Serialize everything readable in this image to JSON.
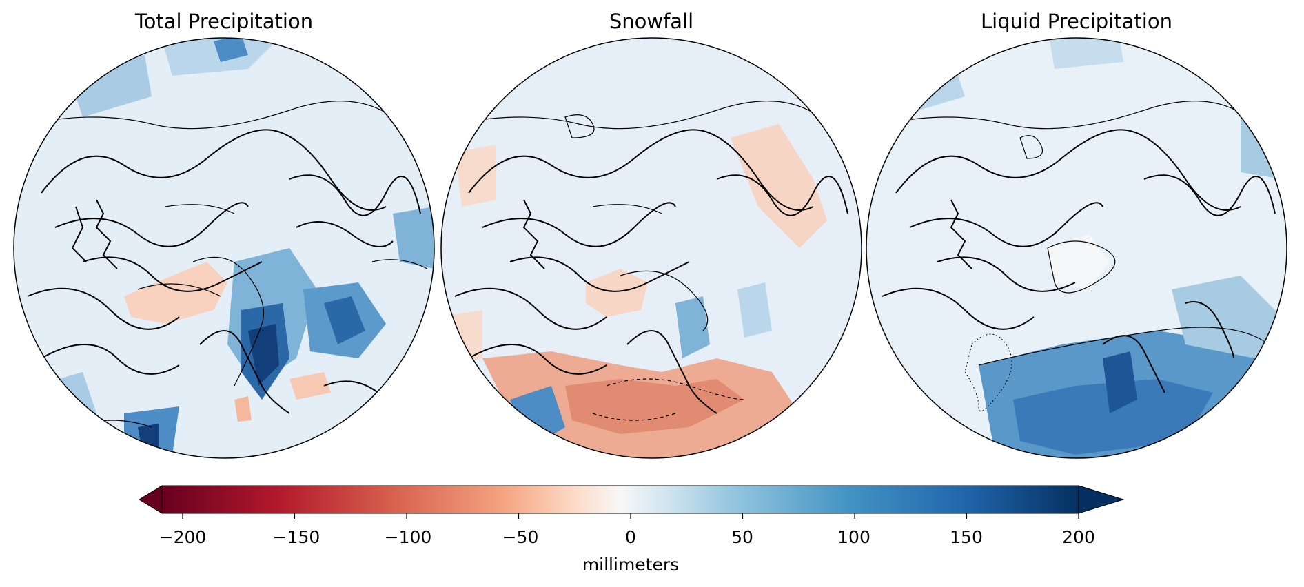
{
  "panels": [
    {
      "title": "Total Precipitation",
      "mode": "total"
    },
    {
      "title": "Snowfall",
      "mode": "snow"
    },
    {
      "title": "Liquid Precipitation",
      "mode": "liquid"
    }
  ],
  "colorbar": {
    "label": "millimeters",
    "colormap": "RdBu",
    "min": -200,
    "max": 200,
    "extend": "both",
    "ticks": [
      "−200",
      "−150",
      "−100",
      "−50",
      "0",
      "50",
      "100",
      "150",
      "200"
    ],
    "tick_values": [
      -200,
      -150,
      -100,
      -50,
      0,
      50,
      100,
      150,
      200
    ]
  },
  "colors": {
    "deep_red": "#67001f",
    "red": "#b2182b",
    "light_red": "#f4a582",
    "pale_red": "#fddbc7",
    "white": "#f7f7f7",
    "pale_blue": "#d1e5f0",
    "light_blue": "#92c5de",
    "blue": "#2166ac",
    "deep_blue": "#053061"
  }
}
